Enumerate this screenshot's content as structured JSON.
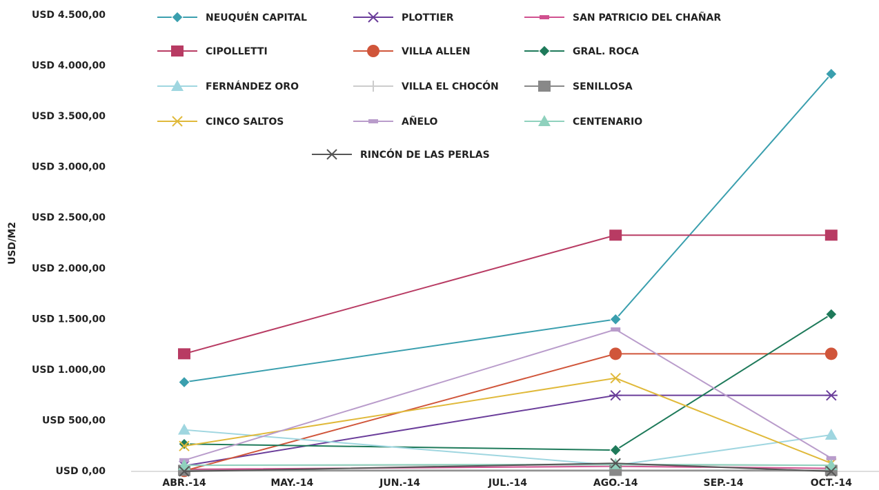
{
  "chart_data": {
    "type": "line",
    "y_label": "USD/M2",
    "categories": [
      "ABR.-14",
      "MAY.-14",
      "JUN.-14",
      "JUL.-14",
      "AGO.-14",
      "SEP.-14",
      "OCT.-14"
    ],
    "connect_gaps": true,
    "legend": "top",
    "ylim": [
      0,
      4500
    ],
    "yticks": [
      {
        "value": 0,
        "label": "USD 0,00"
      },
      {
        "value": 500,
        "label": "USD 500,00"
      },
      {
        "value": 1000,
        "label": "USD 1.000,00"
      },
      {
        "value": 1500,
        "label": "USD 1.500,00"
      },
      {
        "value": 2000,
        "label": "USD 2.000,00"
      },
      {
        "value": 2500,
        "label": "USD 2.500,00"
      },
      {
        "value": 3000,
        "label": "USD 3.000,00"
      },
      {
        "value": 3500,
        "label": "USD 3.500,00"
      },
      {
        "value": 4000,
        "label": "USD 4.000,00"
      },
      {
        "value": 4500,
        "label": "USD 4.500,00"
      }
    ],
    "series": [
      {
        "name": "NEUQUÉN CAPITAL",
        "color": "#3a9fae",
        "marker": "diamond",
        "values": [
          880,
          null,
          null,
          null,
          1500,
          null,
          3920
        ]
      },
      {
        "name": "PLOTTIER",
        "color": "#6a3d9a",
        "marker": "star",
        "values": [
          55,
          null,
          null,
          null,
          750,
          null,
          750
        ]
      },
      {
        "name": "SAN PATRICIO DEL CHAÑAR",
        "color": "#d0508f",
        "marker": "dash",
        "values": [
          20,
          null,
          null,
          null,
          50,
          null,
          30
        ]
      },
      {
        "name": "CIPOLLETTI",
        "color": "#b83b63",
        "marker": "square",
        "values": [
          1160,
          null,
          null,
          null,
          2330,
          null,
          2330
        ]
      },
      {
        "name": "VILLA ALLEN",
        "color": "#d0553a",
        "marker": "circle",
        "values": [
          5,
          null,
          null,
          null,
          1160,
          null,
          1160
        ]
      },
      {
        "name": "GRAL. ROCA",
        "color": "#1e7a5a",
        "marker": "diamond",
        "values": [
          270,
          null,
          null,
          null,
          210,
          null,
          1550
        ]
      },
      {
        "name": "FERNÁNDEZ ORO",
        "color": "#9fd6e0",
        "marker": "triangle",
        "values": [
          410,
          null,
          null,
          null,
          60,
          null,
          360
        ]
      },
      {
        "name": "VILLA EL CHOCÓN",
        "color": "#cccccc",
        "marker": "plus",
        "values": [
          60,
          null,
          null,
          null,
          60,
          null,
          60
        ]
      },
      {
        "name": "SENILLOSA",
        "color": "#888888",
        "marker": "square",
        "values": [
          10,
          null,
          null,
          null,
          10,
          null,
          10
        ]
      },
      {
        "name": "CINCO SALTOS",
        "color": "#e0b93a",
        "marker": "x",
        "values": [
          250,
          null,
          null,
          null,
          920,
          null,
          80
        ]
      },
      {
        "name": "AÑELO",
        "color": "#b99ccb",
        "marker": "dash",
        "values": [
          110,
          null,
          null,
          null,
          1400,
          null,
          130
        ]
      },
      {
        "name": "CENTENARIO",
        "color": "#8fd1bd",
        "marker": "triangle",
        "values": [
          60,
          null,
          null,
          null,
          70,
          null,
          60
        ]
      },
      {
        "name": "RINCÓN DE LAS PERLAS",
        "color": "#555555",
        "marker": "x",
        "values": [
          0,
          null,
          null,
          null,
          80,
          null,
          0
        ]
      }
    ]
  }
}
